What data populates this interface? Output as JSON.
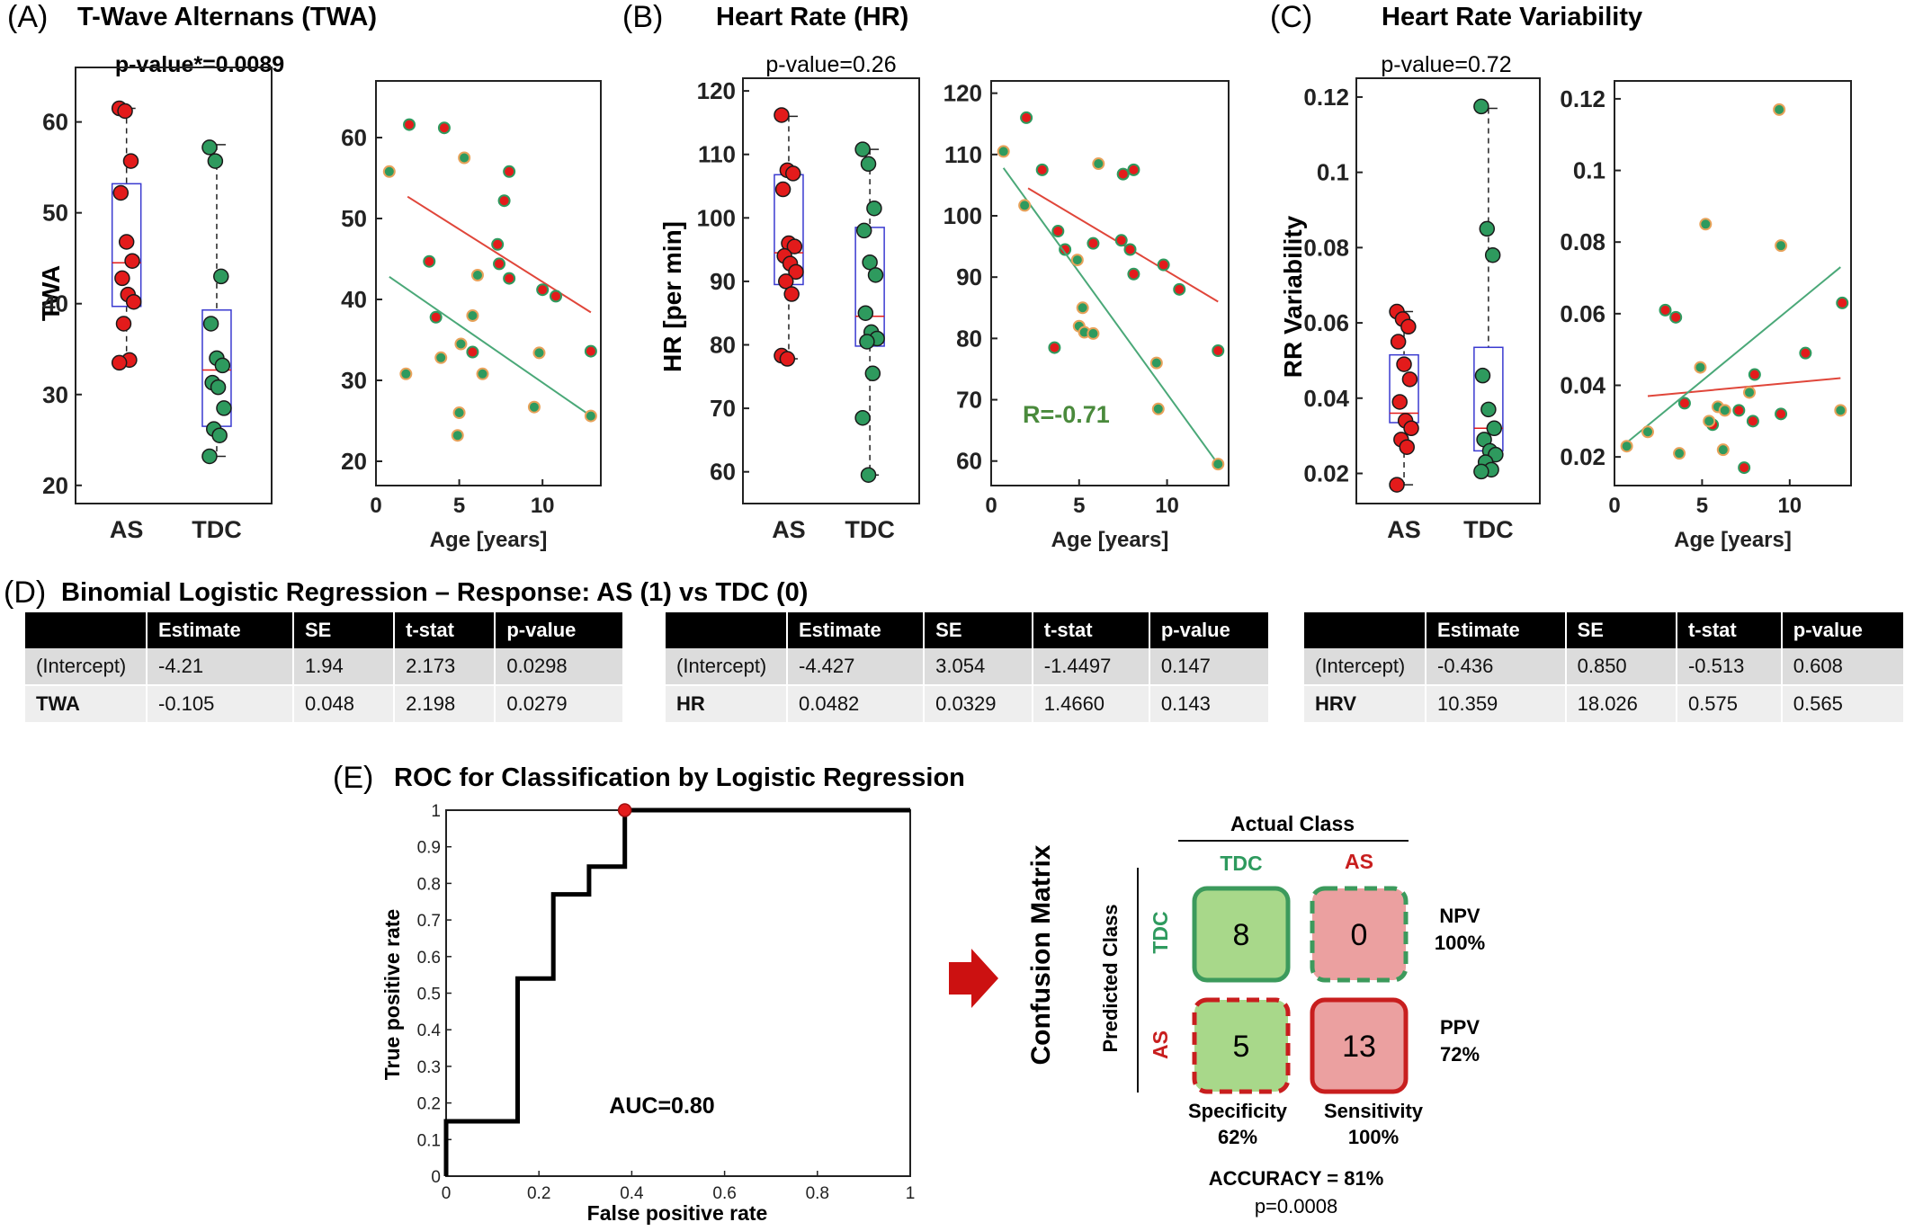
{
  "panels": {
    "A": {
      "letter": "(A)",
      "title": "T-Wave Alternans (TWA)",
      "pvalue": "p-value*=0.0089",
      "ylabel": "TWA"
    },
    "B": {
      "letter": "(B)",
      "title": "Heart Rate (HR)",
      "pvalue": "p-value=0.26",
      "ylabel": "HR [per min]",
      "corr": "R=-0.71"
    },
    "C": {
      "letter": "(C)",
      "title": "Heart Rate Variability",
      "pvalue": "p-value=0.72",
      "ylabel": "RR Variability"
    },
    "D": {
      "letter": "(D)",
      "title": "Binomial Logistic Regression – Response: AS (1) vs TDC (0)"
    },
    "E": {
      "letter": "(E)",
      "title": "ROC for Classification by Logistic Regression"
    }
  },
  "colors": {
    "AS": "#e31b1b",
    "TDC": "#2e9a5e",
    "box": "#3a3ad0",
    "median": "#e31b1b",
    "fit_AS": "#e0463a",
    "fit_TDC": "#4aa878",
    "cm_green": "#a8d88a",
    "cm_red": "#eba0a0",
    "cm_green_border": "#3c9a5c",
    "cm_red_border": "#c81e1e",
    "arrow": "#cc1111"
  },
  "chart_data": [
    {
      "id": "twa_box",
      "type": "box",
      "categories": [
        "AS",
        "TDC"
      ],
      "ylim": [
        18,
        66
      ],
      "yticks": [
        20,
        30,
        40,
        50,
        60
      ],
      "groups": [
        {
          "name": "AS",
          "q1": 39.7,
          "median": 44.5,
          "q3": 53.2,
          "whisker_low": 33.5,
          "whisker_high": 61.5,
          "points": [
            61.5,
            61.2,
            55.7,
            52.2,
            46.8,
            44.7,
            42.8,
            41.0,
            40.2,
            37.8,
            33.8,
            33.5
          ]
        },
        {
          "name": "TDC",
          "q1": 26.5,
          "median": 32.7,
          "q3": 39.3,
          "whisker_low": 23.2,
          "whisker_high": 57.5,
          "points": [
            57.2,
            55.7,
            43.0,
            37.8,
            34.0,
            33.2,
            31.3,
            30.8,
            28.5,
            26.2,
            25.5,
            23.2
          ]
        }
      ]
    },
    {
      "id": "twa_age",
      "type": "scatter",
      "xlabel": "Age [years]",
      "xlim": [
        0,
        13.5
      ],
      "ylim": [
        17,
        67
      ],
      "xticks": [
        0,
        5,
        10
      ],
      "yticks": [
        20,
        30,
        40,
        50,
        60
      ],
      "series": [
        {
          "name": "AS",
          "points": [
            [
              2.0,
              61.6
            ],
            [
              4.1,
              61.2
            ],
            [
              8.0,
              55.8
            ],
            [
              7.7,
              52.2
            ],
            [
              7.3,
              46.8
            ],
            [
              7.4,
              44.4
            ],
            [
              8.0,
              42.6
            ],
            [
              10.0,
              41.2
            ],
            [
              10.8,
              40.4
            ],
            [
              3.2,
              44.7
            ],
            [
              3.6,
              37.8
            ],
            [
              5.8,
              33.5
            ],
            [
              12.9,
              33.6
            ]
          ],
          "fit": [
            [
              1.9,
              52.7
            ],
            [
              12.9,
              38.4
            ]
          ]
        },
        {
          "name": "TDC",
          "points": [
            [
              0.8,
              55.8
            ],
            [
              5.3,
              57.5
            ],
            [
              6.1,
              43.0
            ],
            [
              5.8,
              38.0
            ],
            [
              5.1,
              34.5
            ],
            [
              3.9,
              32.8
            ],
            [
              6.4,
              30.8
            ],
            [
              1.8,
              30.8
            ],
            [
              9.8,
              33.4
            ],
            [
              5.0,
              26.0
            ],
            [
              9.5,
              26.7
            ],
            [
              4.9,
              23.2
            ],
            [
              12.9,
              25.6
            ]
          ],
          "fit": [
            [
              0.8,
              42.8
            ],
            [
              12.9,
              25.6
            ]
          ]
        }
      ]
    },
    {
      "id": "hr_box",
      "type": "box",
      "categories": [
        "AS",
        "TDC"
      ],
      "ylim": [
        55,
        122
      ],
      "yticks": [
        60,
        70,
        80,
        90,
        100,
        110,
        120
      ],
      "groups": [
        {
          "name": "AS",
          "q1": 89.5,
          "median": 94.5,
          "q3": 106.8,
          "whisker_low": 77.8,
          "whisker_high": 116.0,
          "points": [
            116.2,
            107.5,
            107.0,
            104.5,
            96.0,
            95.5,
            94.0,
            92.8,
            91.5,
            90.0,
            88.0,
            78.3,
            77.8
          ]
        },
        {
          "name": "TDC",
          "q1": 79.8,
          "median": 84.5,
          "q3": 98.5,
          "whisker_low": 59.5,
          "whisker_high": 110.8,
          "points": [
            110.8,
            108.5,
            101.5,
            98.0,
            93.0,
            91.0,
            85.0,
            82.0,
            81.0,
            80.5,
            75.5,
            68.5,
            59.5
          ]
        }
      ]
    },
    {
      "id": "hr_age",
      "type": "scatter",
      "xlabel": "Age [years]",
      "xlim": [
        0,
        13.5
      ],
      "ylim": [
        56,
        122
      ],
      "xticks": [
        0,
        5,
        10
      ],
      "yticks": [
        60,
        70,
        80,
        90,
        100,
        110,
        120
      ],
      "series": [
        {
          "name": "AS",
          "points": [
            [
              2.0,
              116.0
            ],
            [
              2.9,
              107.5
            ],
            [
              7.5,
              106.8
            ],
            [
              8.1,
              107.5
            ],
            [
              3.8,
              97.5
            ],
            [
              4.2,
              94.5
            ],
            [
              5.8,
              95.5
            ],
            [
              7.4,
              96.0
            ],
            [
              7.9,
              94.5
            ],
            [
              8.1,
              90.5
            ],
            [
              9.8,
              92.0
            ],
            [
              10.7,
              88.0
            ],
            [
              12.9,
              78.0
            ],
            [
              3.6,
              78.5
            ]
          ],
          "fit": [
            [
              2.1,
              104.5
            ],
            [
              12.9,
              86.0
            ]
          ]
        },
        {
          "name": "TDC",
          "points": [
            [
              0.7,
              110.5
            ],
            [
              1.9,
              101.7
            ],
            [
              6.1,
              108.5
            ],
            [
              4.9,
              92.8
            ],
            [
              5.2,
              85.0
            ],
            [
              5.0,
              82.0
            ],
            [
              5.3,
              81.0
            ],
            [
              5.8,
              80.8
            ],
            [
              9.4,
              76.0
            ],
            [
              9.5,
              68.5
            ],
            [
              12.9,
              59.5
            ]
          ],
          "fit": [
            [
              0.7,
              107.8
            ],
            [
              12.9,
              59.5
            ]
          ]
        }
      ]
    },
    {
      "id": "hrv_box",
      "type": "box",
      "categories": [
        "AS",
        "TDC"
      ],
      "ylim": [
        0.012,
        0.125
      ],
      "yticks": [
        0.02,
        0.04,
        0.06,
        0.08,
        0.1,
        0.12
      ],
      "groups": [
        {
          "name": "AS",
          "q1": 0.0335,
          "median": 0.036,
          "q3": 0.0515,
          "whisker_low": 0.017,
          "whisker_high": 0.063,
          "points": [
            0.063,
            0.061,
            0.059,
            0.055,
            0.049,
            0.045,
            0.039,
            0.034,
            0.032,
            0.029,
            0.027,
            0.017
          ]
        },
        {
          "name": "TDC",
          "q1": 0.026,
          "median": 0.032,
          "q3": 0.0535,
          "whisker_low": 0.021,
          "whisker_high": 0.117,
          "points": [
            0.1175,
            0.085,
            0.078,
            0.046,
            0.037,
            0.032,
            0.029,
            0.026,
            0.025,
            0.023,
            0.021,
            0.0205
          ]
        }
      ]
    },
    {
      "id": "hrv_age",
      "type": "scatter",
      "xlabel": "Age [years]",
      "xlim": [
        0,
        13.5
      ],
      "ylim": [
        0.012,
        0.125
      ],
      "xticks": [
        0,
        5,
        10
      ],
      "yticks": [
        0.02,
        0.04,
        0.06,
        0.08,
        0.1,
        0.12
      ],
      "series": [
        {
          "name": "AS",
          "points": [
            [
              2.9,
              0.061
            ],
            [
              3.5,
              0.059
            ],
            [
              4.0,
              0.035
            ],
            [
              5.6,
              0.029
            ],
            [
              7.1,
              0.033
            ],
            [
              7.4,
              0.017
            ],
            [
              7.9,
              0.03
            ],
            [
              8.0,
              0.043
            ],
            [
              9.5,
              0.032
            ],
            [
              10.9,
              0.049
            ],
            [
              13.0,
              0.063
            ]
          ],
          "fit": [
            [
              1.9,
              0.037
            ],
            [
              12.9,
              0.042
            ]
          ]
        },
        {
          "name": "TDC",
          "points": [
            [
              0.7,
              0.023
            ],
            [
              1.9,
              0.027
            ],
            [
              3.7,
              0.021
            ],
            [
              4.9,
              0.045
            ],
            [
              5.2,
              0.085
            ],
            [
              5.4,
              0.03
            ],
            [
              5.9,
              0.034
            ],
            [
              6.2,
              0.022
            ],
            [
              6.3,
              0.033
            ],
            [
              7.7,
              0.038
            ],
            [
              9.4,
              0.117
            ],
            [
              9.5,
              0.079
            ],
            [
              12.9,
              0.033
            ]
          ],
          "fit": [
            [
              0.7,
              0.024
            ],
            [
              12.9,
              0.073
            ]
          ]
        }
      ]
    },
    {
      "id": "roc",
      "type": "line",
      "xlabel": "False positive rate",
      "ylabel": "True positive rate",
      "xlim": [
        0,
        1
      ],
      "ylim": [
        0,
        1
      ],
      "xticks": [
        "0",
        "0.2",
        "0.4",
        "0.6",
        "0.8",
        "1"
      ],
      "yticks": [
        "0",
        "0.1",
        "0.2",
        "0.3",
        "0.4",
        "0.5",
        "0.6",
        "0.7",
        "0.8",
        "0.9",
        "1"
      ],
      "auc_label": "AUC=0.80",
      "curve": [
        [
          0,
          0
        ],
        [
          0,
          0.15
        ],
        [
          0.154,
          0.15
        ],
        [
          0.154,
          0.54
        ],
        [
          0.231,
          0.54
        ],
        [
          0.231,
          0.77
        ],
        [
          0.308,
          0.77
        ],
        [
          0.308,
          0.846
        ],
        [
          0.385,
          0.846
        ],
        [
          0.385,
          1.0
        ],
        [
          1.0,
          1.0
        ]
      ],
      "operating_point": [
        0.385,
        1.0
      ]
    }
  ],
  "tables": [
    {
      "headers": [
        "",
        "Estimate",
        "SE",
        "t-stat",
        "p-value"
      ],
      "rows": [
        [
          "(Intercept)",
          "-4.21",
          "1.94",
          "2.173",
          "0.0298"
        ],
        [
          "TWA",
          "-0.105",
          "0.048",
          "2.198",
          "0.0279"
        ]
      ]
    },
    {
      "headers": [
        "",
        "Estimate",
        "SE",
        "t-stat",
        "p-value"
      ],
      "rows": [
        [
          "(Intercept)",
          "-4.427",
          "3.054",
          "-1.4497",
          "0.147"
        ],
        [
          "HR",
          "0.0482",
          "0.0329",
          "1.4660",
          "0.143"
        ]
      ]
    },
    {
      "headers": [
        "",
        "Estimate",
        "SE",
        "t-stat",
        "p-value"
      ],
      "rows": [
        [
          "(Intercept)",
          "-0.436",
          "0.850",
          "-0.513",
          "0.608"
        ],
        [
          "HRV",
          "10.359",
          "18.026",
          "0.575",
          "0.565"
        ]
      ]
    }
  ],
  "confusion": {
    "title": "Confusion Matrix",
    "actual_label": "Actual Class",
    "predicted_label": "Predicted Class",
    "col_tdc": "TDC",
    "col_as": "AS",
    "row_tdc": "TDC",
    "row_as": "AS",
    "cells": {
      "tdc_tdc": "8",
      "tdc_as": "0",
      "as_tdc": "5",
      "as_as": "13"
    },
    "npv_label": "NPV",
    "npv_value": "100%",
    "ppv_label": "PPV",
    "ppv_value": "72%",
    "spec_label": "Specificity",
    "spec_value": "62%",
    "sens_label": "Sensitivity",
    "sens_value": "100%",
    "accuracy": "ACCURACY = 81%",
    "pvalue": "p=0.0008"
  }
}
